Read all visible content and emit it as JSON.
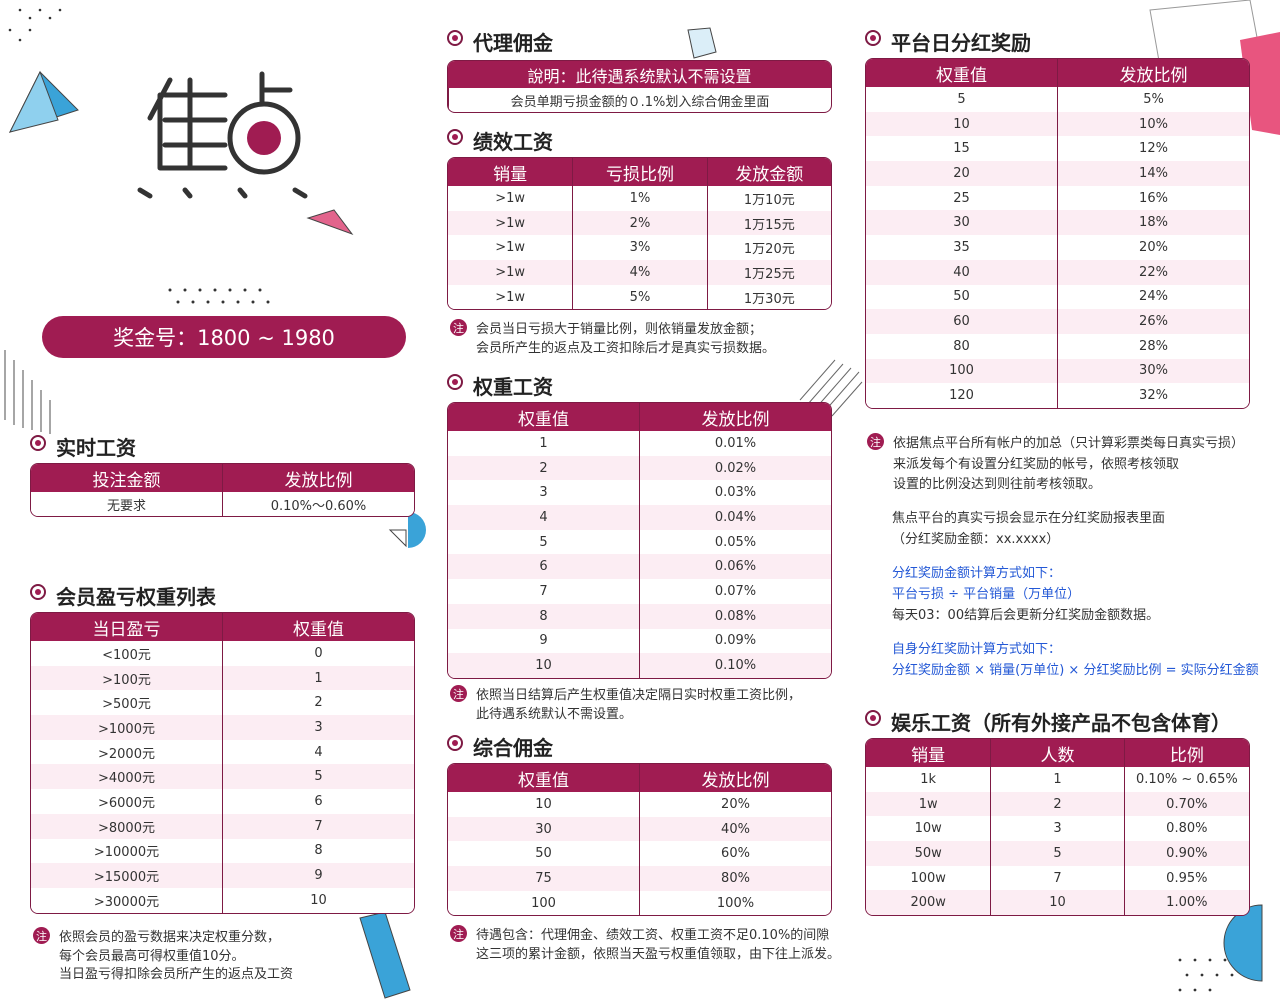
{
  "note_label": "注",
  "bonus": "奖金号：1800 ~ 1980",
  "realtime": {
    "title": "实时工资",
    "headers": [
      "投注金额",
      "发放比例"
    ],
    "rows": [
      [
        "无要求",
        "0.10%～0.60%"
      ]
    ]
  },
  "member": {
    "title": "会员盈亏权重列表",
    "headers": [
      "当日盈亏",
      "权重值"
    ],
    "rows": [
      [
        "<100元",
        "0"
      ],
      [
        ">100元",
        "1"
      ],
      [
        ">500元",
        "2"
      ],
      [
        ">1000元",
        "3"
      ],
      [
        ">2000元",
        "4"
      ],
      [
        ">4000元",
        "5"
      ],
      [
        ">6000元",
        "6"
      ],
      [
        ">8000元",
        "7"
      ],
      [
        ">10000元",
        "8"
      ],
      [
        ">15000元",
        "9"
      ],
      [
        ">30000元",
        "10"
      ]
    ],
    "notes": [
      "依照会员的盈亏数据来决定权重分数，",
      "每个会员最高可得权重值10分。",
      "当日盈亏得扣除会员所产生的返点及工资"
    ]
  },
  "agent": {
    "title": "代理佣金",
    "header": "說明：此待遇系统默认不需设置",
    "text": "会员单期亏损金额的０.1%划入综合佣金里面"
  },
  "perf": {
    "title": "绩效工资",
    "headers": [
      "销量",
      "亏损比例",
      "发放金额"
    ],
    "rows": [
      [
        ">1w",
        "1%",
        "1万10元"
      ],
      [
        ">1w",
        "2%",
        "1万15元"
      ],
      [
        ">1w",
        "3%",
        "1万20元"
      ],
      [
        ">1w",
        "4%",
        "1万25元"
      ],
      [
        ">1w",
        "5%",
        "1万30元"
      ]
    ],
    "notes": [
      "会员当日亏损大于销量比例，则依销量发放金额；",
      "会员所产生的返点及工资扣除后才是真实亏损数据。"
    ]
  },
  "weight": {
    "title": "权重工资",
    "headers": [
      "权重值",
      "发放比例"
    ],
    "rows": [
      [
        "1",
        "0.01%"
      ],
      [
        "2",
        "0.02%"
      ],
      [
        "3",
        "0.03%"
      ],
      [
        "4",
        "0.04%"
      ],
      [
        "5",
        "0.05%"
      ],
      [
        "6",
        "0.06%"
      ],
      [
        "7",
        "0.07%"
      ],
      [
        "8",
        "0.08%"
      ],
      [
        "9",
        "0.09%"
      ],
      [
        "10",
        "0.10%"
      ]
    ],
    "notes": [
      "依照当日结算后产生权重值决定隔日实时权重工资比例，",
      "此待遇系统默认不需设置。"
    ]
  },
  "comp": {
    "title": "综合佣金",
    "headers": [
      "权重值",
      "发放比例"
    ],
    "rows": [
      [
        "10",
        "20%"
      ],
      [
        "30",
        "40%"
      ],
      [
        "50",
        "60%"
      ],
      [
        "75",
        "80%"
      ],
      [
        "100",
        "100%"
      ]
    ],
    "notes": [
      "待遇包含：代理佣金、绩效工资、权重工资不足0.10%的间隙",
      "这三项的累计金额，依照当天盈亏权重值领取，由下往上派发。"
    ]
  },
  "dividend": {
    "title": "平台日分红奖励",
    "headers": [
      "权重值",
      "发放比例"
    ],
    "rows": [
      [
        "5",
        "5%"
      ],
      [
        "10",
        "10%"
      ],
      [
        "15",
        "12%"
      ],
      [
        "20",
        "14%"
      ],
      [
        "25",
        "16%"
      ],
      [
        "30",
        "18%"
      ],
      [
        "35",
        "20%"
      ],
      [
        "40",
        "22%"
      ],
      [
        "50",
        "24%"
      ],
      [
        "60",
        "26%"
      ],
      [
        "80",
        "28%"
      ],
      [
        "100",
        "30%"
      ],
      [
        "120",
        "32%"
      ]
    ],
    "notes": [
      "依据焦点平台所有帐户的加总（只计算彩票类每日真实亏损）",
      "来派发每个有设置分红奖励的帐号，依照考核领取",
      "设置的比例没达到则往前考核领取。"
    ],
    "paragraphs": [
      [
        {
          "text": "焦点平台的真实亏损会显示在分红奖励报表里面",
          "color": "#333333"
        },
        {
          "text": "（分红奖励金额：xx.xxxx）",
          "color": "#333333"
        }
      ],
      [
        {
          "text": "分红奖励金额计算方式如下：",
          "color": "#2358d6"
        },
        {
          "text": "平台亏损 ÷ 平台销量（万单位）",
          "color": "#2358d6"
        },
        {
          "text": "每天03：00结算后会更新分红奖励金额数据。",
          "color": "#333333"
        }
      ],
      [
        {
          "text": "自身分红奖励计算方式如下：",
          "color": "#2358d6"
        },
        {
          "text": "分红奖励金额 × 销量(万单位) × 分红奖励比例 = 实际分红金额",
          "color": "#2358d6"
        }
      ]
    ]
  },
  "ent": {
    "title": "娱乐工资（所有外接产品不包含体育）",
    "headers": [
      "销量",
      "人数",
      "比例"
    ],
    "rows": [
      [
        "1k",
        "1",
        "0.10% ~ 0.65%"
      ],
      [
        "1w",
        "2",
        "0.70%"
      ],
      [
        "10w",
        "3",
        "0.80%"
      ],
      [
        "50w",
        "5",
        "0.90%"
      ],
      [
        "100w",
        "7",
        "0.95%"
      ],
      [
        "200w",
        "10",
        "1.00%"
      ]
    ]
  }
}
